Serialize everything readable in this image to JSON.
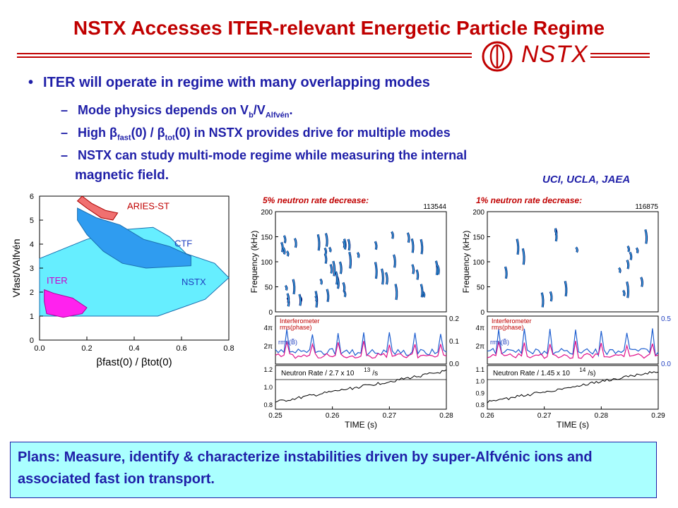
{
  "title": "NSTX Accesses ITER-relevant Energetic Particle Regime",
  "logo_text": "NSTX",
  "bullet": "ITER will operate in regime with many overlapping modes",
  "sub1": {
    "pre": "Mode physics depends on V",
    "s1": "b",
    "mid": "/V",
    "s2": "Alfvén",
    "post": "."
  },
  "sub2": {
    "pre": "High ",
    "beta1": "β",
    "s1": "fast",
    "mid": "(0) / ",
    "beta2": "β",
    "s2": "tot",
    "post": "(0) in NSTX provides drive for multiple modes"
  },
  "sub3_line1": "NSTX can study multi-mode regime while measuring the internal",
  "sub3_line2": "magnetic field.",
  "credit": "UCI, UCLA, JAEA",
  "caption_left": "5% neutron rate decrease:",
  "caption_right": "1% neutron rate decrease:",
  "plans": "Plans: Measure, identify & characterize instabilities driven by super-Alfvénic ions and associated fast ion transport.",
  "chart_data": [
    {
      "type": "area",
      "xlabel": "βfast(0) / βtot(0)",
      "ylabel": "Vfast/VAlfvén",
      "xlim": [
        0.0,
        0.8
      ],
      "ylim": [
        0,
        6
      ],
      "xticks": [
        "0.0",
        "0.2",
        "0.4",
        "0.6",
        "0.8"
      ],
      "yticks": [
        "0",
        "1",
        "2",
        "3",
        "4",
        "5",
        "6"
      ],
      "regions": [
        {
          "name": "NSTX",
          "color": "#66eeff",
          "points": [
            [
              0.0,
              1.0
            ],
            [
              0.0,
              3.4
            ],
            [
              0.2,
              4.2
            ],
            [
              0.35,
              4.6
            ],
            [
              0.48,
              4.7
            ],
            [
              0.55,
              4.3
            ],
            [
              0.62,
              3.6
            ],
            [
              0.74,
              3.2
            ],
            [
              0.8,
              2.6
            ],
            [
              0.7,
              1.7
            ],
            [
              0.5,
              1.0
            ],
            [
              0.0,
              1.0
            ]
          ]
        },
        {
          "name": "CTF",
          "color": "#2f9cf0",
          "points": [
            [
              0.16,
              5.5
            ],
            [
              0.24,
              5.1
            ],
            [
              0.34,
              4.8
            ],
            [
              0.44,
              4.2
            ],
            [
              0.55,
              3.9
            ],
            [
              0.64,
              3.5
            ],
            [
              0.64,
              3.1
            ],
            [
              0.45,
              3.0
            ],
            [
              0.35,
              3.2
            ],
            [
              0.27,
              3.7
            ],
            [
              0.2,
              4.4
            ],
            [
              0.16,
              5.0
            ],
            [
              0.16,
              5.5
            ]
          ]
        },
        {
          "name": "ARIES-ST",
          "color": "#f07070",
          "points": [
            [
              0.18,
              6.0
            ],
            [
              0.22,
              5.7
            ],
            [
              0.28,
              5.4
            ],
            [
              0.33,
              5.3
            ],
            [
              0.31,
              5.0
            ],
            [
              0.26,
              5.1
            ],
            [
              0.2,
              5.5
            ],
            [
              0.16,
              5.8
            ],
            [
              0.18,
              6.0
            ]
          ]
        },
        {
          "name": "ITER",
          "color": "#ff22ee",
          "points": [
            [
              0.02,
              2.1
            ],
            [
              0.06,
              1.95
            ],
            [
              0.14,
              1.75
            ],
            [
              0.2,
              1.35
            ],
            [
              0.18,
              1.1
            ],
            [
              0.1,
              0.95
            ],
            [
              0.03,
              1.1
            ],
            [
              0.02,
              1.6
            ],
            [
              0.02,
              2.1
            ]
          ]
        }
      ]
    },
    {
      "type": "heatmap",
      "caption": "5% neutron rate decrease:",
      "shot": "113544",
      "xlabel": "TIME (s)",
      "xlim": [
        0.25,
        0.28
      ],
      "xticks": [
        "0.25",
        "0.26",
        "0.27",
        "0.28"
      ],
      "spectrogram": {
        "ylabel": "Frequency (kHz)",
        "ylim": [
          0,
          200
        ],
        "yticks": [
          "0",
          "50",
          "100",
          "150",
          "200"
        ]
      },
      "interferometer": {
        "label_line1": "Interferometer",
        "label_line2": "rms(phase)",
        "label2": "rms(B̃)",
        "left_ticks": [
          "2π",
          "4π"
        ],
        "right_ticks": [
          "0.0",
          "0.1",
          "0.2"
        ]
      },
      "neutron": {
        "label": "Neutron Rate / 2.7 x 10",
        "exp": "13",
        "unit": "/s",
        "yticks": [
          "0.8",
          "1.0",
          "1.2"
        ]
      }
    },
    {
      "type": "heatmap",
      "caption": "1% neutron rate decrease:",
      "shot": "116875",
      "xlabel": "TIME (s)",
      "xlim": [
        0.26,
        0.29
      ],
      "xticks": [
        "0.26",
        "0.27",
        "0.28",
        "0.29"
      ],
      "spectrogram": {
        "ylabel": "Frequency (kHz)",
        "ylim": [
          0,
          200
        ],
        "yticks": [
          "0",
          "50",
          "100",
          "150",
          "200"
        ]
      },
      "interferometer": {
        "label_line1": "Interferometer",
        "label_line2": "rms(phase)",
        "label2": "rms(B̃)",
        "left_ticks": [
          "2π",
          "4π"
        ],
        "right_ticks": [
          "0.0",
          "0.5"
        ]
      },
      "neutron": {
        "label": "Neutron Rate / 1.45 x 10",
        "exp": "14",
        "unit": "/s)",
        "yticks": [
          "0.8",
          "0.9",
          "1.0",
          "1.1"
        ]
      }
    }
  ]
}
